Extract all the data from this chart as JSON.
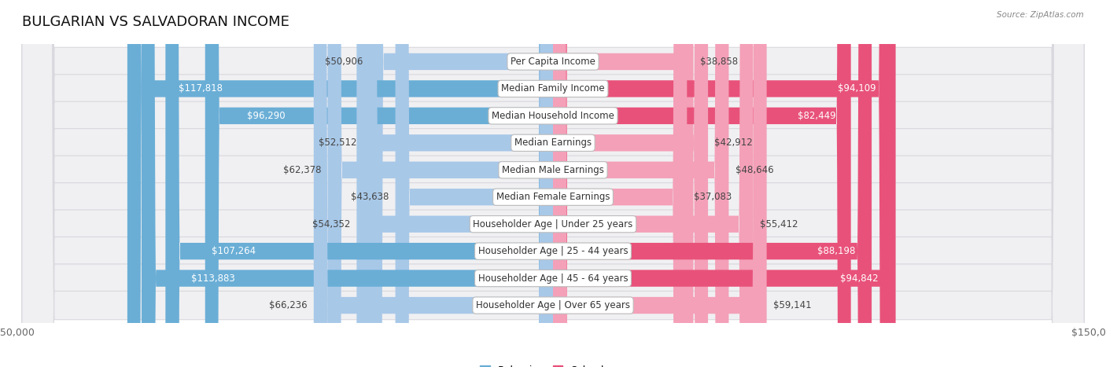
{
  "title": "BULGARIAN VS SALVADORAN INCOME",
  "source": "Source: ZipAtlas.com",
  "categories": [
    "Per Capita Income",
    "Median Family Income",
    "Median Household Income",
    "Median Earnings",
    "Median Male Earnings",
    "Median Female Earnings",
    "Householder Age | Under 25 years",
    "Householder Age | 25 - 44 years",
    "Householder Age | 45 - 64 years",
    "Householder Age | Over 65 years"
  ],
  "bulgarian_values": [
    50906,
    117818,
    96290,
    52512,
    62378,
    43638,
    54352,
    107264,
    113883,
    66236
  ],
  "salvadoran_values": [
    38858,
    94109,
    82449,
    42912,
    48646,
    37083,
    55412,
    88198,
    94842,
    59141
  ],
  "bulgarian_color_light": "#a8c8e8",
  "bulgarian_color_dark": "#6aaed6",
  "salvadoran_color_light": "#f4a0b8",
  "salvadoran_color_dark": "#e8527a",
  "bulgarian_threshold": 80000,
  "salvadoran_threshold": 80000,
  "max_value": 150000,
  "bg_color": "#ffffff",
  "row_bg": "#f0f0f2",
  "row_border": "#d8d8de",
  "title_fontsize": 13,
  "label_fontsize": 8.5,
  "value_fontsize": 8.5,
  "legend_fontsize": 9,
  "axis_fontsize": 9
}
